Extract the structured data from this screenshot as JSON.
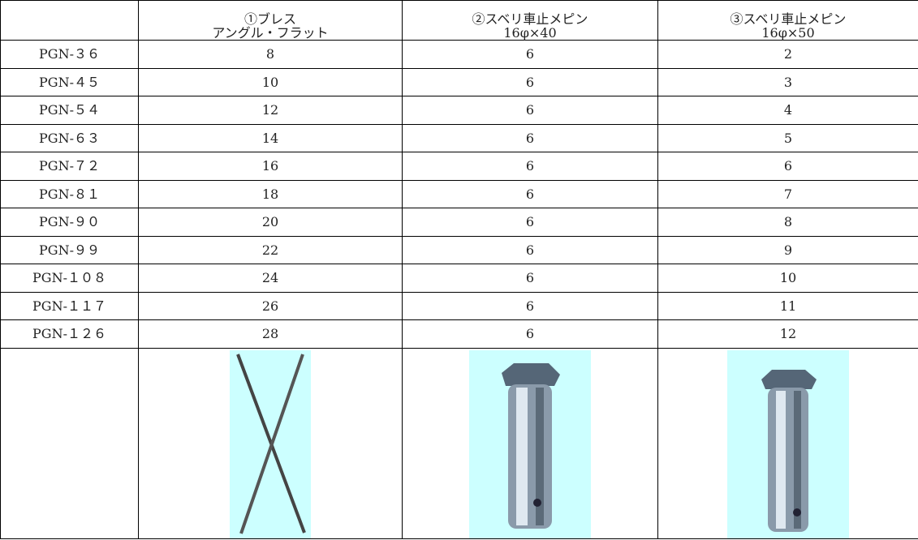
{
  "table": {
    "header": [
      {
        "line1": "①ブレス",
        "line2": "アングル・フラット"
      },
      {
        "line1": "②スベリ車止メピン",
        "line2": "16φ×40"
      },
      {
        "line1": "③スベリ車止メピン",
        "line2": "16φ×50"
      }
    ],
    "rows": [
      [
        "PGN-３６",
        8,
        6,
        2
      ],
      [
        "PGN-４５",
        10,
        6,
        3
      ],
      [
        "PGN-５４",
        12,
        6,
        4
      ],
      [
        "PGN-６３",
        14,
        6,
        5
      ],
      [
        "PGN-７２",
        16,
        6,
        6
      ],
      [
        "PGN-８１",
        18,
        6,
        7
      ],
      [
        "PGN-９０",
        20,
        6,
        8
      ],
      [
        "PGN-９９",
        22,
        6,
        9
      ],
      [
        "PGN-１０８",
        24,
        6,
        10
      ],
      [
        "PGN-１１７",
        26,
        6,
        11
      ],
      [
        "PGN-１２６",
        28,
        6,
        12
      ]
    ]
  }
}
